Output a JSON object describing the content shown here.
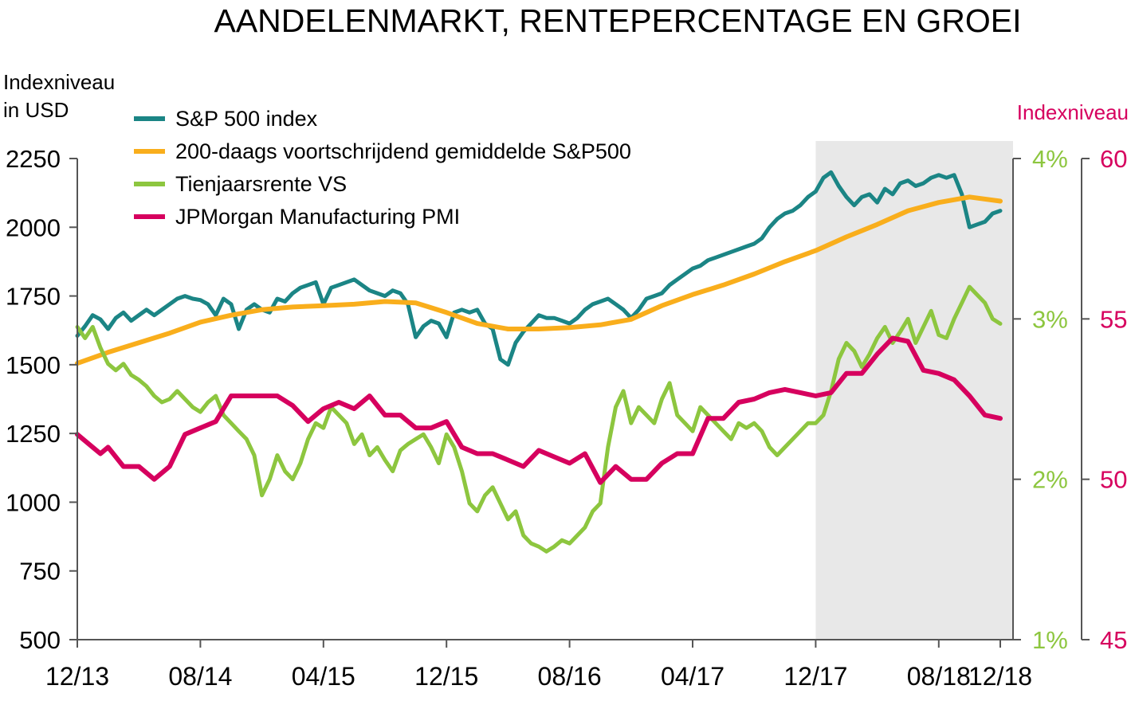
{
  "chart_data": {
    "type": "line",
    "title": "AANDELENMARKT, RENTEPERCENTAGE EN GROEI",
    "left_axis": {
      "label_lines": [
        "Indexniveau",
        "in USD"
      ],
      "min": 500,
      "max": 2250,
      "ticks": [
        500,
        750,
        1000,
        1250,
        1500,
        1750,
        2000,
        2250
      ],
      "color": "#000000"
    },
    "middle_axis": {
      "min": 1,
      "max": 4,
      "ticks": [
        1,
        2,
        3,
        4
      ],
      "tick_labels": [
        "1%",
        "2%",
        "3%",
        "4%"
      ],
      "color": "#8dc63f"
    },
    "right_axis": {
      "label": "Indexniveau",
      "min": 45,
      "max": 60,
      "ticks": [
        45,
        50,
        55,
        60
      ],
      "color": "#d6005e"
    },
    "x_axis": {
      "start": "2013-12",
      "end": "2018-12",
      "tick_labels": [
        "12/13",
        "08/14",
        "04/15",
        "12/15",
        "08/16",
        "04/17",
        "12/17",
        "08/18",
        "12/18"
      ],
      "tick_positions": [
        0,
        8,
        16,
        24,
        32,
        40,
        48,
        56,
        60
      ]
    },
    "shaded_region": {
      "from": 48,
      "to": 60,
      "color": "#e8e8e8"
    },
    "grid": false,
    "legend_position": "top-left",
    "series": [
      {
        "name": "S&P 500 index",
        "axis": "left",
        "color": "#1b8585",
        "line_width": 5,
        "x": [
          0,
          0.5,
          1,
          1.5,
          2,
          2.5,
          3,
          3.5,
          4,
          4.5,
          5,
          5.5,
          6,
          6.5,
          7,
          7.5,
          8,
          8.5,
          9,
          9.5,
          10,
          10.5,
          11,
          11.5,
          12,
          12.5,
          13,
          13.5,
          14,
          14.5,
          15,
          15.5,
          16,
          16.5,
          17,
          17.5,
          18,
          18.5,
          19,
          19.5,
          20,
          20.5,
          21,
          21.5,
          22,
          22.5,
          23,
          23.5,
          24,
          24.5,
          25,
          25.5,
          26,
          26.5,
          27,
          27.5,
          28,
          28.5,
          29,
          29.5,
          30,
          30.5,
          31,
          31.5,
          32,
          32.5,
          33,
          33.5,
          34,
          34.5,
          35,
          35.5,
          36,
          36.5,
          37,
          37.5,
          38,
          38.5,
          39,
          39.5,
          40,
          40.5,
          41,
          41.5,
          42,
          42.5,
          43,
          43.5,
          44,
          44.5,
          45,
          45.5,
          46,
          46.5,
          47,
          47.5,
          48,
          48.5,
          49,
          49.5,
          50,
          50.5,
          51,
          51.5,
          52,
          52.5,
          53,
          53.5,
          54,
          54.5,
          55,
          55.5,
          56,
          56.5,
          57,
          57.5,
          58,
          58.5,
          59,
          59.5,
          60
        ],
        "values": [
          1605,
          1640,
          1680,
          1665,
          1630,
          1670,
          1690,
          1660,
          1680,
          1700,
          1680,
          1700,
          1720,
          1740,
          1750,
          1740,
          1735,
          1720,
          1680,
          1740,
          1720,
          1630,
          1700,
          1720,
          1700,
          1690,
          1740,
          1730,
          1760,
          1780,
          1790,
          1800,
          1720,
          1780,
          1790,
          1800,
          1810,
          1790,
          1770,
          1760,
          1750,
          1770,
          1760,
          1720,
          1600,
          1640,
          1660,
          1650,
          1600,
          1690,
          1700,
          1690,
          1700,
          1650,
          1630,
          1520,
          1500,
          1580,
          1620,
          1650,
          1680,
          1670,
          1670,
          1660,
          1650,
          1670,
          1700,
          1720,
          1730,
          1740,
          1720,
          1700,
          1670,
          1700,
          1740,
          1750,
          1760,
          1790,
          1810,
          1830,
          1850,
          1860,
          1880,
          1890,
          1900,
          1910,
          1920,
          1930,
          1940,
          1960,
          2000,
          2030,
          2050,
          2060,
          2080,
          2110,
          2130,
          2180,
          2200,
          2150,
          2110,
          2080,
          2110,
          2120,
          2090,
          2140,
          2120,
          2160,
          2170,
          2150,
          2160,
          2180,
          2190,
          2180,
          2190,
          2120,
          2000,
          2010,
          2020,
          2050,
          2060
        ]
      },
      {
        "name": "200-daags voortschrijdend gemiddelde S&P500",
        "axis": "left",
        "color": "#f9ae1c",
        "line_width": 6,
        "x": [
          0,
          2,
          4,
          6,
          8,
          10,
          12,
          14,
          16,
          18,
          20,
          22,
          24,
          26,
          28,
          30,
          32,
          34,
          36,
          38,
          40,
          42,
          44,
          46,
          48,
          50,
          52,
          54,
          56,
          58,
          60
        ],
        "values": [
          1505,
          1545,
          1580,
          1615,
          1655,
          1680,
          1700,
          1710,
          1715,
          1720,
          1730,
          1725,
          1690,
          1650,
          1630,
          1630,
          1635,
          1645,
          1665,
          1715,
          1755,
          1790,
          1830,
          1875,
          1915,
          1965,
          2010,
          2060,
          2090,
          2110,
          2095
        ]
      },
      {
        "name": "Tienjaarsrente VS",
        "axis": "middle",
        "color": "#8dc63f",
        "line_width": 5,
        "x": [
          0,
          0.5,
          1,
          1.5,
          2,
          2.5,
          3,
          3.5,
          4,
          4.5,
          5,
          5.5,
          6,
          6.5,
          7,
          7.5,
          8,
          8.5,
          9,
          9.5,
          10,
          10.5,
          11,
          11.5,
          12,
          12.5,
          13,
          13.5,
          14,
          14.5,
          15,
          15.5,
          16,
          16.5,
          17,
          17.5,
          18,
          18.5,
          19,
          19.5,
          20,
          20.5,
          21,
          21.5,
          22,
          22.5,
          23,
          23.5,
          24,
          24.5,
          25,
          25.5,
          26,
          26.5,
          27,
          27.5,
          28,
          28.5,
          29,
          29.5,
          30,
          30.5,
          31,
          31.5,
          32,
          32.5,
          33,
          33.5,
          34,
          34.5,
          35,
          35.5,
          36,
          36.5,
          37,
          37.5,
          38,
          38.5,
          39,
          39.5,
          40,
          40.5,
          41,
          41.5,
          42,
          42.5,
          43,
          43.5,
          44,
          44.5,
          45,
          45.5,
          46,
          46.5,
          47,
          47.5,
          48,
          48.5,
          49,
          49.5,
          50,
          50.5,
          51,
          51.5,
          52,
          52.5,
          53,
          53.5,
          54,
          54.5,
          55,
          55.5,
          56,
          56.5,
          57,
          57.5,
          58,
          58.5,
          59,
          59.5,
          60
        ],
        "values": [
          2.95,
          2.88,
          2.95,
          2.82,
          2.72,
          2.68,
          2.72,
          2.65,
          2.62,
          2.58,
          2.52,
          2.48,
          2.5,
          2.55,
          2.5,
          2.45,
          2.42,
          2.48,
          2.52,
          2.4,
          2.35,
          2.3,
          2.25,
          2.15,
          1.9,
          2.0,
          2.15,
          2.05,
          2.0,
          2.1,
          2.25,
          2.35,
          2.32,
          2.45,
          2.4,
          2.35,
          2.22,
          2.28,
          2.15,
          2.2,
          2.12,
          2.05,
          2.18,
          2.22,
          2.25,
          2.28,
          2.2,
          2.1,
          2.28,
          2.2,
          2.05,
          1.85,
          1.8,
          1.9,
          1.95,
          1.85,
          1.75,
          1.8,
          1.65,
          1.6,
          1.58,
          1.55,
          1.58,
          1.62,
          1.6,
          1.65,
          1.7,
          1.8,
          1.85,
          2.2,
          2.45,
          2.55,
          2.35,
          2.45,
          2.4,
          2.35,
          2.5,
          2.6,
          2.4,
          2.35,
          2.3,
          2.45,
          2.4,
          2.35,
          2.3,
          2.25,
          2.35,
          2.32,
          2.35,
          2.3,
          2.2,
          2.15,
          2.2,
          2.25,
          2.3,
          2.35,
          2.35,
          2.4,
          2.55,
          2.75,
          2.85,
          2.8,
          2.7,
          2.78,
          2.88,
          2.95,
          2.85,
          2.92,
          3.0,
          2.85,
          2.95,
          3.05,
          2.9,
          2.88,
          3.0,
          3.1,
          3.2,
          3.15,
          3.1,
          3.0,
          2.97
        ]
      },
      {
        "name": "JPMorgan Manufacturing PMI",
        "axis": "right",
        "color": "#d6005e",
        "line_width": 6,
        "x": [
          0,
          1,
          1.5,
          2,
          3,
          4,
          5,
          6,
          7,
          8,
          9,
          10,
          11,
          12,
          13,
          14,
          15,
          16,
          17,
          18,
          19,
          20,
          21,
          22,
          23,
          24,
          25,
          26,
          27,
          28,
          29,
          30,
          31,
          32,
          33,
          34,
          35,
          36,
          37,
          38,
          39,
          40,
          41,
          42,
          43,
          44,
          45,
          46,
          47,
          48,
          49,
          50,
          51,
          52,
          53,
          54,
          55,
          56,
          57,
          58,
          59,
          60
        ],
        "values": [
          51.4,
          51.0,
          50.8,
          51.0,
          50.4,
          50.4,
          50.0,
          50.4,
          51.4,
          51.6,
          51.8,
          52.6,
          52.6,
          52.6,
          52.6,
          52.3,
          51.8,
          52.2,
          52.4,
          52.2,
          52.6,
          52.0,
          52.0,
          51.6,
          51.6,
          51.8,
          51.0,
          50.8,
          50.8,
          50.6,
          50.4,
          50.9,
          50.7,
          50.5,
          50.8,
          49.9,
          50.4,
          50.0,
          50.0,
          50.5,
          50.8,
          50.8,
          51.9,
          51.9,
          52.4,
          52.5,
          52.7,
          52.8,
          52.7,
          52.6,
          52.7,
          53.3,
          53.3,
          53.9,
          54.4,
          54.3,
          53.4,
          53.3,
          53.1,
          52.6,
          52.0,
          51.9
        ]
      }
    ]
  }
}
